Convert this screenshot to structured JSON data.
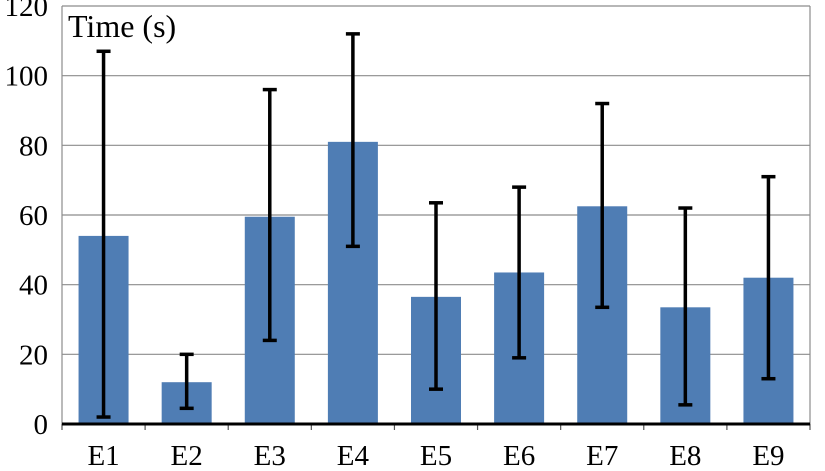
{
  "chart_data": {
    "type": "bar",
    "ylabel": "Time (s)",
    "categories": [
      "E1",
      "E2",
      "E3",
      "E4",
      "E5",
      "E6",
      "E7",
      "E8",
      "E9"
    ],
    "values": [
      54,
      12,
      59.5,
      81,
      36.5,
      43.5,
      62.5,
      33.5,
      42
    ],
    "error_low": [
      2,
      4.5,
      24,
      51,
      10,
      19,
      33.5,
      5.5,
      13
    ],
    "error_high": [
      107,
      20,
      96,
      112,
      63.5,
      68,
      92,
      62,
      71
    ],
    "ylim": [
      0,
      120
    ],
    "yticks": [
      0,
      20,
      40,
      60,
      80,
      100,
      120
    ],
    "grid": true,
    "colors": {
      "bar": "#4f7db4",
      "error": "#000000",
      "grid": "#8c8c8c"
    }
  }
}
